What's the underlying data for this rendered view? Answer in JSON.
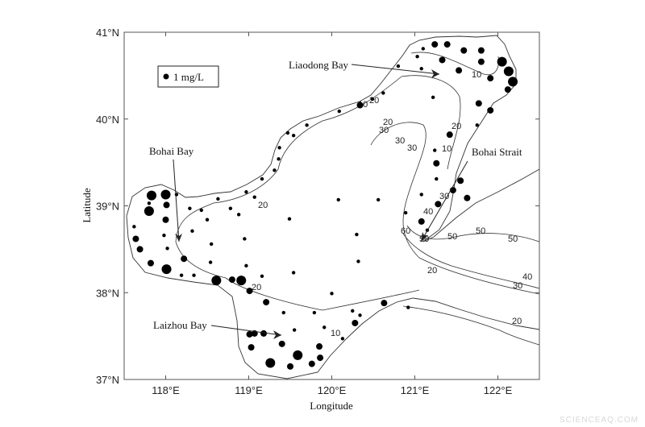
{
  "map": {
    "xlim": [
      117.5,
      122.5
    ],
    "ylim": [
      37,
      41
    ],
    "xlabel": "Longitude",
    "ylabel": "Latitude",
    "xticks": [
      "118°E",
      "119°E",
      "120°E",
      "121°E",
      "122°E"
    ],
    "xtick_values": [
      118,
      119,
      120,
      121,
      122
    ],
    "yticks": [
      "37°N",
      "38°N",
      "39°N",
      "40°N",
      "41°N"
    ],
    "ytick_values": [
      37,
      38,
      39,
      40,
      41
    ],
    "legend": {
      "label": "1 mg/L",
      "placement": "top-left"
    },
    "annotations": {
      "liaodong": "Liaodong Bay",
      "bohai_bay": "Bohai Bay",
      "bohai_strait": "Bohai Strait",
      "laizhou": "Laizhou Bay"
    },
    "contour_labels": [
      "10",
      "20",
      "30",
      "10",
      "20",
      "20",
      "30",
      "30",
      "10",
      "20",
      "30",
      "40",
      "50",
      "60",
      "50",
      "50",
      "50",
      "40",
      "30",
      "20",
      "20",
      "10",
      "20"
    ],
    "marker_color": "#000000",
    "stations": [
      [
        121.1,
        40.81,
        "s"
      ],
      [
        121.24,
        40.86,
        "m"
      ],
      [
        121.39,
        40.86,
        "m"
      ],
      [
        121.59,
        40.79,
        "m"
      ],
      [
        121.8,
        40.79,
        "m"
      ],
      [
        121.8,
        40.66,
        "m"
      ],
      [
        121.33,
        40.68,
        "m"
      ],
      [
        121.53,
        40.56,
        "m"
      ],
      [
        121.03,
        40.72,
        "s"
      ],
      [
        121.08,
        40.58,
        "s"
      ],
      [
        122.05,
        40.66,
        "l"
      ],
      [
        122.13,
        40.55,
        "l"
      ],
      [
        122.18,
        40.43,
        "l"
      ],
      [
        122.12,
        40.34,
        "m"
      ],
      [
        121.91,
        40.47,
        "m"
      ],
      [
        121.77,
        40.18,
        "m"
      ],
      [
        121.91,
        40.1,
        "m"
      ],
      [
        121.75,
        39.93,
        "s"
      ],
      [
        121.42,
        39.82,
        "m"
      ],
      [
        121.24,
        39.64,
        "s"
      ],
      [
        121.26,
        39.49,
        "m"
      ],
      [
        121.26,
        39.31,
        "s"
      ],
      [
        121.55,
        39.29,
        "m"
      ],
      [
        121.46,
        39.18,
        "m"
      ],
      [
        121.63,
        39.09,
        "m"
      ],
      [
        121.28,
        39.02,
        "m"
      ],
      [
        120.8,
        40.61,
        "s"
      ],
      [
        120.62,
        40.3,
        "s"
      ],
      [
        120.49,
        40.23,
        "s"
      ],
      [
        120.34,
        40.16,
        "m"
      ],
      [
        120.09,
        40.09,
        "s"
      ],
      [
        119.7,
        39.93,
        "s"
      ],
      [
        119.47,
        39.84,
        "s"
      ],
      [
        119.54,
        39.81,
        "s"
      ],
      [
        119.37,
        39.67,
        "s"
      ],
      [
        119.36,
        39.54,
        "s"
      ],
      [
        119.31,
        39.41,
        "s"
      ],
      [
        119.16,
        39.31,
        "s"
      ],
      [
        118.97,
        39.16,
        "s"
      ],
      [
        119.07,
        39.1,
        "s"
      ],
      [
        118.63,
        39.08,
        "s"
      ],
      [
        118.78,
        38.97,
        "s"
      ],
      [
        118.43,
        38.95,
        "s"
      ],
      [
        118.29,
        38.97,
        "s"
      ],
      [
        118.13,
        39.13,
        "s"
      ],
      [
        118.0,
        39.13,
        "l"
      ],
      [
        117.83,
        39.12,
        "l"
      ],
      [
        117.8,
        39.03,
        "s"
      ],
      [
        117.8,
        38.94,
        "l"
      ],
      [
        118.01,
        39.01,
        "m"
      ],
      [
        118.88,
        38.9,
        "s"
      ],
      [
        118.0,
        38.84,
        "m"
      ],
      [
        117.62,
        38.76,
        "s"
      ],
      [
        117.98,
        38.66,
        "s"
      ],
      [
        117.64,
        38.62,
        "m"
      ],
      [
        118.32,
        38.71,
        "s"
      ],
      [
        118.5,
        38.84,
        "s"
      ],
      [
        118.95,
        38.62,
        "s"
      ],
      [
        118.55,
        38.56,
        "s"
      ],
      [
        117.69,
        38.5,
        "m"
      ],
      [
        118.02,
        38.51,
        "s"
      ],
      [
        118.22,
        38.39,
        "m"
      ],
      [
        117.82,
        38.34,
        "m"
      ],
      [
        118.01,
        38.27,
        "l"
      ],
      [
        118.19,
        38.2,
        "s"
      ],
      [
        118.34,
        38.2,
        "s"
      ],
      [
        118.54,
        38.35,
        "s"
      ],
      [
        118.97,
        38.31,
        "s"
      ],
      [
        119.16,
        38.19,
        "s"
      ],
      [
        118.61,
        38.14,
        "l"
      ],
      [
        118.8,
        38.15,
        "m"
      ],
      [
        118.91,
        38.14,
        "l"
      ],
      [
        119.01,
        38.02,
        "m"
      ],
      [
        119.21,
        37.89,
        "m"
      ],
      [
        119.42,
        37.77,
        "s"
      ],
      [
        119.79,
        37.77,
        "s"
      ],
      [
        119.91,
        37.6,
        "s"
      ],
      [
        119.55,
        37.57,
        "s"
      ],
      [
        119.01,
        37.52,
        "m"
      ],
      [
        119.07,
        37.53,
        "m"
      ],
      [
        119.18,
        37.53,
        "m"
      ],
      [
        119.4,
        37.41,
        "m"
      ],
      [
        119.03,
        37.37,
        "m"
      ],
      [
        119.59,
        37.28,
        "l"
      ],
      [
        119.85,
        37.38,
        "m"
      ],
      [
        119.86,
        37.25,
        "m"
      ],
      [
        119.76,
        37.18,
        "m"
      ],
      [
        119.26,
        37.19,
        "l"
      ],
      [
        119.5,
        37.15,
        "m"
      ],
      [
        120.13,
        37.47,
        "s"
      ],
      [
        120.28,
        37.65,
        "m"
      ],
      [
        120.25,
        37.79,
        "s"
      ],
      [
        120.34,
        37.74,
        "s"
      ],
      [
        120.63,
        37.88,
        "m"
      ],
      [
        120.92,
        37.83,
        "s"
      ],
      [
        119.54,
        38.23,
        "s"
      ],
      [
        120.0,
        37.99,
        "s"
      ],
      [
        120.32,
        38.36,
        "s"
      ],
      [
        120.3,
        38.67,
        "s"
      ],
      [
        119.49,
        38.85,
        "s"
      ],
      [
        121.08,
        38.82,
        "m"
      ],
      [
        121.15,
        38.72,
        "s"
      ],
      [
        120.89,
        38.92,
        "s"
      ],
      [
        121.22,
        40.25,
        "s"
      ],
      [
        120.08,
        39.07,
        "s"
      ],
      [
        120.56,
        39.07,
        "s"
      ],
      [
        121.08,
        39.13,
        "s"
      ]
    ]
  },
  "watermark": "SCIENCEAQ.COM"
}
